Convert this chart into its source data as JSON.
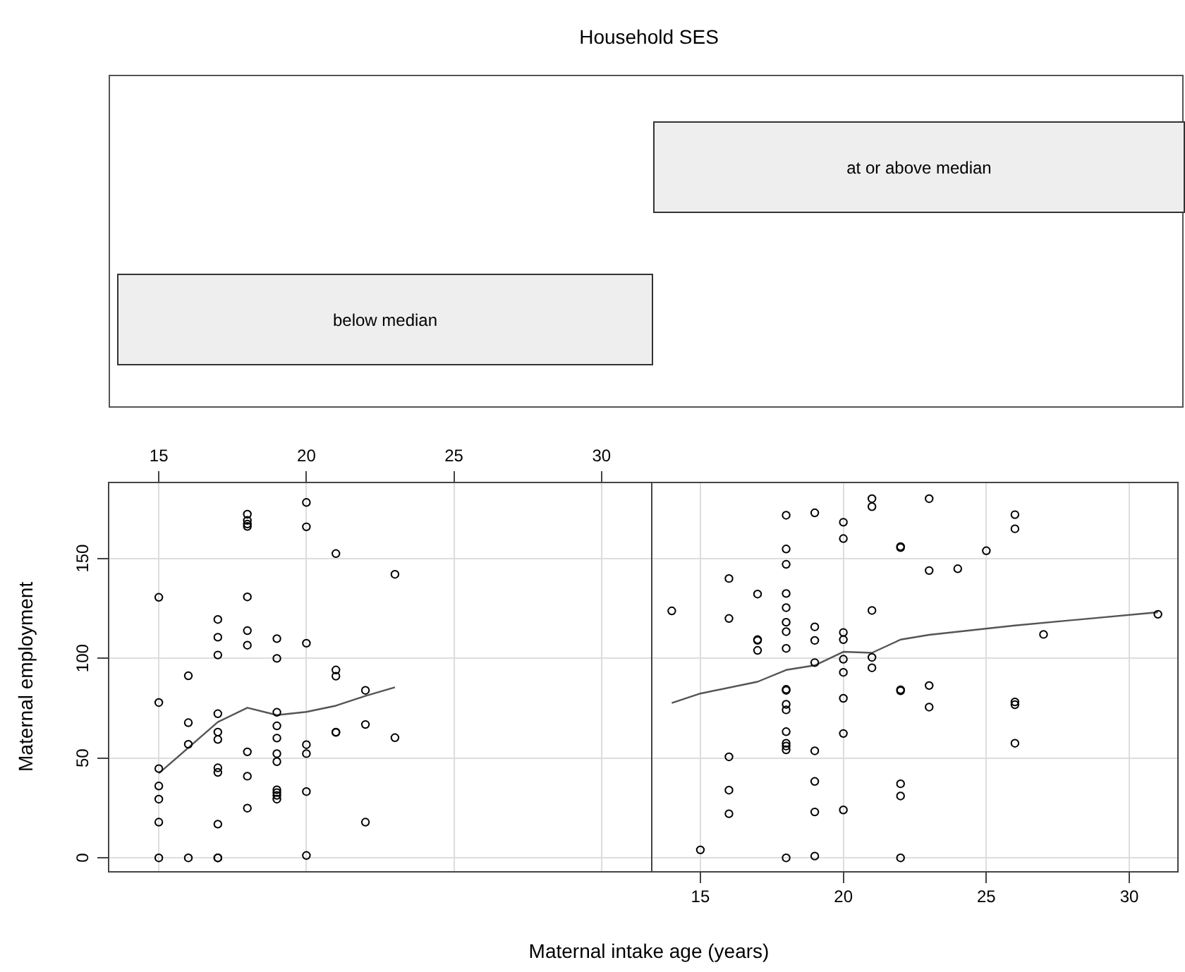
{
  "chart_data": [
    {
      "type": "other",
      "title": "Household SES",
      "annotations": [
        "below median",
        "at or above median"
      ]
    },
    {
      "type": "scatter",
      "ylabel": "Maternal employment",
      "xlim": [
        13.3,
        31.7
      ],
      "xticks": [
        15,
        20,
        25,
        30
      ],
      "ylim": [
        -7,
        188
      ],
      "yticks": [
        0,
        50,
        100,
        150
      ],
      "grid": true,
      "marker": "circle",
      "legend": false,
      "series": [
        {
          "color": "#000000",
          "x": [
            15,
            15,
            15,
            15,
            15,
            15,
            15,
            16,
            16,
            16,
            16,
            17,
            17,
            17,
            17,
            17,
            17,
            17,
            17,
            17,
            17,
            17,
            18,
            18,
            18,
            18,
            18,
            18,
            18,
            18,
            18,
            18,
            19,
            19,
            19,
            19,
            19,
            19,
            19,
            19,
            19,
            19,
            19,
            20,
            20,
            20,
            20,
            20,
            20,
            20,
            21,
            21,
            21,
            21,
            21,
            22,
            22,
            22,
            23,
            23
          ],
          "values": [
            130.5,
            77.8,
            44.7,
            36,
            29.4,
            17.9,
            0,
            91.2,
            67.7,
            56.9,
            0,
            119.4,
            110.5,
            101.6,
            72.2,
            63,
            59.3,
            45.1,
            42.8,
            16.9,
            0,
            0,
            172.1,
            169,
            167.2,
            166,
            130.7,
            113.8,
            106.5,
            53.1,
            40.9,
            24.9,
            109.8,
            99.9,
            72.9,
            66.1,
            60,
            52.2,
            48.2,
            34.1,
            32.7,
            31.3,
            29.4,
            178,
            165.8,
            107.5,
            56.7,
            52.2,
            33.2,
            1.2,
            152.4,
            94.1,
            91,
            63,
            62.8,
            83.9,
            66.8,
            17.9,
            142,
            60.2
          ]
        },
        {
          "type": "line",
          "color": "#555555",
          "marker": "none",
          "x": [
            15,
            17,
            18,
            19,
            20,
            21,
            22,
            23
          ],
          "values": [
            42.3,
            68,
            75.2,
            71.5,
            73.1,
            76.2,
            81.1,
            85.4
          ]
        }
      ]
    },
    {
      "type": "scatter",
      "xlabel": "Maternal intake age (years)",
      "xlim": [
        13.3,
        31.7
      ],
      "xticks": [
        15,
        20,
        25,
        30
      ],
      "ylim": [
        -7,
        188
      ],
      "yticks": [
        0,
        50,
        100,
        150
      ],
      "grid": true,
      "marker": "circle",
      "legend": false,
      "tick_labels": "x",
      "series": [
        {
          "color": "#000000",
          "x": [
            14,
            15,
            16,
            16,
            16,
            16,
            16,
            17,
            17,
            17,
            17,
            18,
            18,
            18,
            18,
            18,
            18,
            18,
            18,
            18,
            18,
            18,
            18,
            18,
            18,
            18,
            18,
            18,
            19,
            19,
            19,
            19,
            19,
            19,
            19,
            19,
            20,
            20,
            20,
            20,
            20,
            20,
            20,
            20,
            20,
            21,
            21,
            21,
            21,
            21,
            22,
            22,
            22,
            22,
            22,
            22,
            22,
            23,
            23,
            23,
            23,
            24,
            25,
            26,
            26,
            26,
            26,
            26,
            27,
            31
          ],
          "values": [
            123.7,
            4,
            139.9,
            119.9,
            50.6,
            33.9,
            22.1,
            132.1,
            109.3,
            108.9,
            103.9,
            171.6,
            154.7,
            147,
            132.4,
            125.3,
            118,
            113.3,
            104.9,
            84.4,
            83.9,
            76.9,
            74.1,
            63.2,
            57.4,
            56,
            54.1,
            0,
            172.8,
            115.7,
            108.9,
            97.8,
            53.6,
            38.3,
            23,
            0.9,
            168.1,
            159.9,
            112.9,
            109.3,
            99.5,
            92.9,
            79.9,
            62.3,
            24,
            179.9,
            175.9,
            123.9,
            100.4,
            95.2,
            155.9,
            155.4,
            84.2,
            83.7,
            37.1,
            31,
            0,
            179.9,
            143.9,
            86.3,
            75.5,
            144.8,
            153.8,
            171.9,
            164.8,
            78.1,
            76.7,
            57.4,
            111.9,
            122
          ]
        },
        {
          "type": "line",
          "color": "#555555",
          "marker": "none",
          "x": [
            14,
            15,
            17,
            18,
            19,
            20,
            21,
            22,
            23,
            26,
            31
          ],
          "values": [
            77.6,
            82.3,
            88.2,
            94.1,
            96.4,
            103.2,
            102.7,
            109.3,
            111.7,
            116.4,
            123
          ]
        }
      ]
    }
  ]
}
